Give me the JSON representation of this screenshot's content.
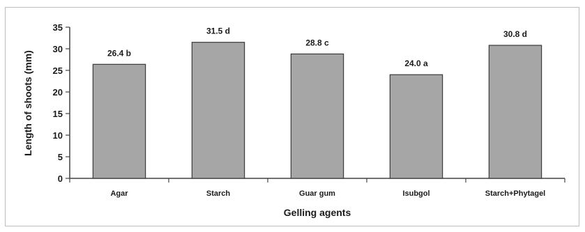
{
  "chart_data": {
    "type": "bar",
    "categories": [
      "Agar",
      "Starch",
      "Guar gum",
      "Isubgol",
      "Starch+Phytagel"
    ],
    "values": [
      26.4,
      31.5,
      28.8,
      24.0,
      30.8
    ],
    "data_labels": [
      "26.4 b",
      "31.5 d",
      "28.8 c",
      "24.0 a",
      "30.8 d"
    ],
    "xlabel": "Gelling agents",
    "ylabel": "Length of shoots (mm)",
    "ylim": [
      0,
      35
    ],
    "yticks": [
      "0",
      "5",
      "10",
      "15",
      "20",
      "25",
      "30",
      "35"
    ],
    "grid": false,
    "bar_color": "#a6a6a6",
    "bar_edge_color": "#3a3a3a"
  }
}
